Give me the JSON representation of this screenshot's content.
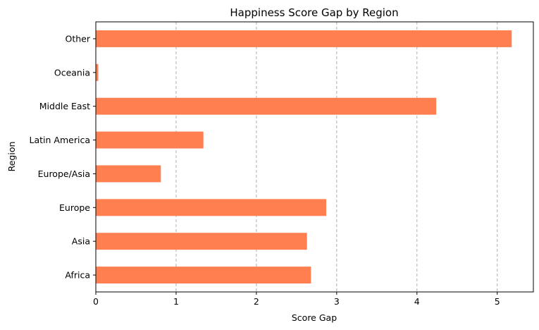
{
  "chart_data": {
    "type": "bar",
    "orientation": "horizontal",
    "title": "Happiness Score Gap by Region",
    "xlabel": "Score Gap",
    "ylabel": "Region",
    "categories": [
      "Africa",
      "Asia",
      "Europe",
      "Europe/Asia",
      "Latin America",
      "Middle East",
      "Oceania",
      "Other"
    ],
    "values": [
      2.68,
      2.63,
      2.87,
      0.81,
      1.34,
      4.24,
      0.03,
      5.18
    ],
    "xlim": [
      0,
      5.45
    ],
    "xticks": [
      "0",
      "1",
      "2",
      "3",
      "4",
      "5"
    ],
    "grid": "x, dashed",
    "bar_color": "#ff7f50"
  }
}
